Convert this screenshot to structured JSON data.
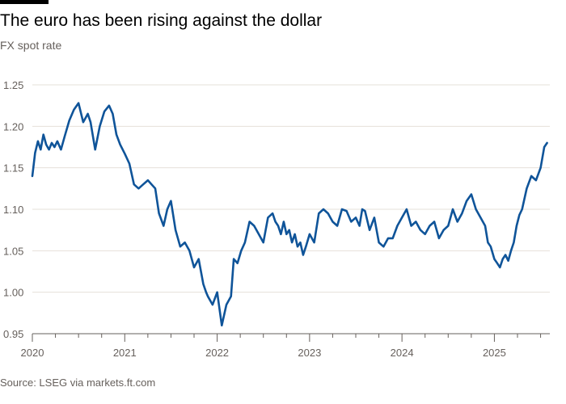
{
  "header": {
    "title": "The euro has been rising against the dollar",
    "subtitle": "FX spot rate"
  },
  "footer": {
    "source": "Source: LSEG via markets.ft.com"
  },
  "colors": {
    "line": "#0f5499",
    "grid": "#e6e0da",
    "axis": "#66605c"
  },
  "chart_data": {
    "type": "line",
    "title": "The euro has been rising against the dollar",
    "subtitle": "FX spot rate",
    "xlabel": "",
    "ylabel": "",
    "xlim": [
      2020.0,
      2025.6
    ],
    "ylim": [
      0.95,
      1.25
    ],
    "y_ticks": [
      0.95,
      1.0,
      1.05,
      1.1,
      1.15,
      1.2,
      1.25
    ],
    "y_tick_labels": [
      "0.95",
      "1.00",
      "1.05",
      "1.10",
      "1.15",
      "1.20",
      "1.25"
    ],
    "x_ticks": [
      2020,
      2021,
      2022,
      2023,
      2024,
      2025
    ],
    "x_tick_labels": [
      "2020",
      "2021",
      "2022",
      "2023",
      "2024",
      "2025"
    ],
    "grid": true,
    "legend": "none",
    "series": [
      {
        "x": [
          2020.0,
          2020.03,
          2020.06,
          2020.09,
          2020.12,
          2020.15,
          2020.18,
          2020.21,
          2020.24,
          2020.27,
          2020.31,
          2020.35,
          2020.4,
          2020.45,
          2020.5,
          2020.55,
          2020.6,
          2020.63,
          2020.68,
          2020.73,
          2020.78,
          2020.83,
          2020.87,
          2020.91,
          2020.95,
          2021.0,
          2021.05,
          2021.1,
          2021.15,
          2021.2,
          2021.25,
          2021.29,
          2021.33,
          2021.37,
          2021.42,
          2021.46,
          2021.5,
          2021.55,
          2021.6,
          2021.65,
          2021.7,
          2021.75,
          2021.8,
          2021.85,
          2021.88,
          2021.9,
          2021.95,
          2022.0,
          2022.05,
          2022.1,
          2022.15,
          2022.18,
          2022.22,
          2022.26,
          2022.3,
          2022.35,
          2022.4,
          2022.45,
          2022.5,
          2022.55,
          2022.6,
          2022.63,
          2022.66,
          2022.69,
          2022.72,
          2022.75,
          2022.78,
          2022.81,
          2022.84,
          2022.87,
          2022.9,
          2022.93,
          2022.96,
          2023.0,
          2023.05,
          2023.1,
          2023.15,
          2023.2,
          2023.25,
          2023.3,
          2023.35,
          2023.4,
          2023.45,
          2023.5,
          2023.54,
          2023.57,
          2023.6,
          2023.65,
          2023.7,
          2023.75,
          2023.8,
          2023.85,
          2023.9,
          2023.95,
          2024.0,
          2024.05,
          2024.1,
          2024.15,
          2024.2,
          2024.25,
          2024.3,
          2024.35,
          2024.4,
          2024.45,
          2024.5,
          2024.55,
          2024.6,
          2024.65,
          2024.7,
          2024.75,
          2024.8,
          2024.85,
          2024.9,
          2024.93,
          2024.96,
          2025.0,
          2025.03,
          2025.06,
          2025.09,
          2025.12,
          2025.15,
          2025.18,
          2025.21,
          2025.24,
          2025.27,
          2025.3,
          2025.35,
          2025.4,
          2025.45,
          2025.5,
          2025.54,
          2025.57
        ],
        "values": [
          1.14,
          1.168,
          1.182,
          1.172,
          1.19,
          1.178,
          1.172,
          1.18,
          1.175,
          1.182,
          1.172,
          1.188,
          1.207,
          1.22,
          1.228,
          1.205,
          1.215,
          1.205,
          1.172,
          1.2,
          1.218,
          1.225,
          1.215,
          1.19,
          1.178,
          1.167,
          1.155,
          1.13,
          1.125,
          1.13,
          1.135,
          1.13,
          1.125,
          1.095,
          1.08,
          1.1,
          1.11,
          1.075,
          1.055,
          1.06,
          1.05,
          1.03,
          1.04,
          1.01,
          1.0,
          0.995,
          0.985,
          1.0,
          0.96,
          0.985,
          0.995,
          1.04,
          1.035,
          1.05,
          1.06,
          1.085,
          1.08,
          1.07,
          1.06,
          1.09,
          1.095,
          1.085,
          1.08,
          1.07,
          1.085,
          1.07,
          1.075,
          1.06,
          1.07,
          1.055,
          1.06,
          1.045,
          1.055,
          1.07,
          1.06,
          1.095,
          1.1,
          1.095,
          1.085,
          1.08,
          1.1,
          1.098,
          1.085,
          1.09,
          1.08,
          1.1,
          1.098,
          1.075,
          1.09,
          1.06,
          1.055,
          1.065,
          1.065,
          1.08,
          1.09,
          1.1,
          1.08,
          1.085,
          1.075,
          1.07,
          1.08,
          1.085,
          1.065,
          1.075,
          1.08,
          1.1,
          1.085,
          1.095,
          1.11,
          1.118,
          1.1,
          1.09,
          1.08,
          1.06,
          1.055,
          1.04,
          1.035,
          1.03,
          1.04,
          1.045,
          1.038,
          1.05,
          1.06,
          1.08,
          1.093,
          1.1,
          1.125,
          1.14,
          1.135,
          1.15,
          1.175,
          1.18
        ]
      }
    ]
  }
}
